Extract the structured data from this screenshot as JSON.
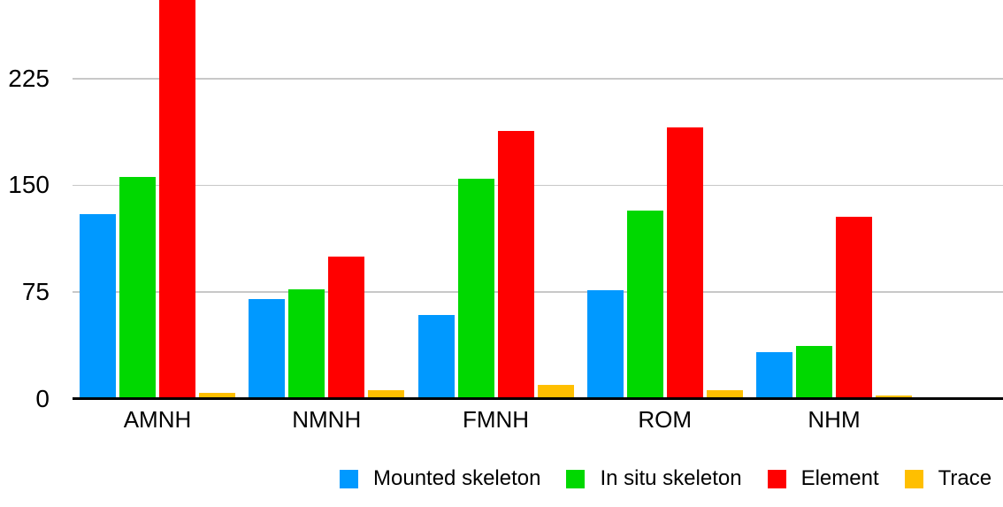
{
  "chart_data": {
    "type": "bar",
    "title": "",
    "xlabel": "",
    "ylabel": "",
    "categories": [
      "AMNH",
      "NMNH",
      "FMNH",
      "ROM",
      "NHM"
    ],
    "series": [
      {
        "name": "Mounted skeleton",
        "color": "#0099FF",
        "values": [
          129,
          69,
          58,
          75,
          32
        ]
      },
      {
        "name": "In situ skeleton",
        "color": "#00D800",
        "values": [
          155,
          76,
          154,
          131,
          36
        ]
      },
      {
        "name": "Element",
        "color": "#FF0000",
        "values": [
          280,
          99,
          187,
          190,
          127
        ]
      },
      {
        "name": "Trace",
        "color": "#FFBF00",
        "values": [
          3,
          5,
          9,
          5,
          1
        ]
      }
    ],
    "yticks": [
      0,
      75,
      150,
      225
    ],
    "ytick_labels": [
      "0",
      "75",
      "150",
      "225"
    ],
    "ylim": [
      0,
      280
    ],
    "grid": "horizontal",
    "gridline_color": "#C8C8C8",
    "axis_line_color": "#000000",
    "legend_position": "bottom",
    "notes": "AMNH Element bar is clipped at the top of the plot area (value >= 280)"
  }
}
